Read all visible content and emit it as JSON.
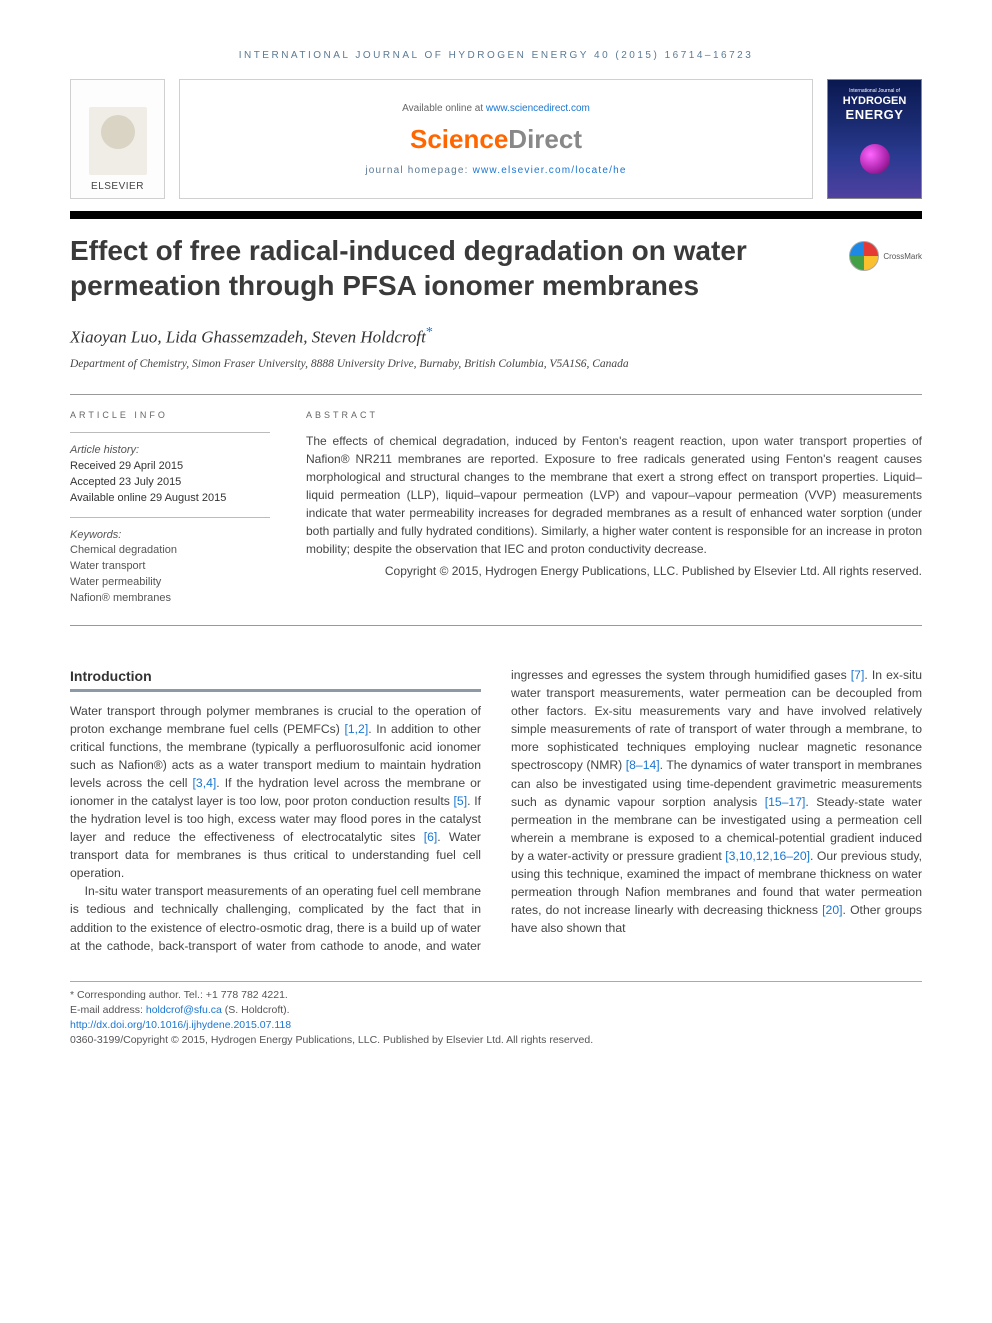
{
  "running_header": "INTERNATIONAL JOURNAL OF HYDROGEN ENERGY 40 (2015) 16714–16723",
  "header": {
    "elsevier_label": "ELSEVIER",
    "available_prefix": "Available online at ",
    "available_url": "www.sciencedirect.com",
    "sd_logo_1": "Science",
    "sd_logo_2": "Direct",
    "homepage_prefix": "journal homepage: ",
    "homepage_url": "www.elsevier.com/locate/he",
    "cover_line1": "International Journal of",
    "cover_line2": "HYDROGEN",
    "cover_line3": "ENERGY"
  },
  "crossmark_label": "CrossMark",
  "title": "Effect of free radical-induced degradation on water permeation through PFSA ionomer membranes",
  "authors": "Xiaoyan Luo, Lida Ghassemzadeh, Steven Holdcroft",
  "affiliation": "Department of Chemistry, Simon Fraser University, 8888 University Drive, Burnaby, British Columbia, V5A1S6, Canada",
  "info": {
    "head": "ARTICLE INFO",
    "history_label": "Article history:",
    "received": "Received 29 April 2015",
    "accepted": "Accepted 23 July 2015",
    "online": "Available online 29 August 2015",
    "keywords_label": "Keywords:",
    "kw1": "Chemical degradation",
    "kw2": "Water transport",
    "kw3": "Water permeability",
    "kw4": "Nafion® membranes"
  },
  "abstract": {
    "head": "ABSTRACT",
    "body": "The effects of chemical degradation, induced by Fenton's reagent reaction, upon water transport properties of Nafion® NR211 membranes are reported. Exposure to free radicals generated using Fenton's reagent causes morphological and structural changes to the membrane that exert a strong effect on transport properties. Liquid–liquid permeation (LLP), liquid–vapour permeation (LVP) and vapour–vapour permeation (VVP) measurements indicate that water permeability increases for degraded membranes as a result of enhanced water sorption (under both partially and fully hydrated conditions). Similarly, a higher water content is responsible for an increase in proton mobility; despite the observation that IEC and proton conductivity decrease.",
    "copyright": "Copyright © 2015, Hydrogen Energy Publications, LLC. Published by Elsevier Ltd. All rights reserved."
  },
  "section": {
    "head": "Introduction",
    "p1a": "Water transport through polymer membranes is crucial to the operation of proton exchange membrane fuel cells (PEMFCs) ",
    "r1": "[1,2]",
    "p1b": ". In addition to other critical functions, the membrane (typically a perfluorosulfonic acid ionomer such as Nafion®) acts as a water transport medium to maintain hydration levels across the cell ",
    "r2": "[3,4]",
    "p1c": ". If the hydration level across the membrane or ionomer in the catalyst layer is too low, poor proton conduction results ",
    "r3": "[5]",
    "p1d": ". If the hydration level is too high, excess water may flood pores in the catalyst layer and reduce the effectiveness of electrocatalytic sites ",
    "r4": "[6]",
    "p1e": ". Water transport data for membranes is thus critical to understanding fuel cell operation.",
    "p2a": "In-situ water transport measurements of an operating fuel cell membrane is tedious and technically challenging, complicated by the fact that in addition to the existence of electro-osmotic drag, there is a build up of water at the ",
    "p2b": "cathode, back-transport of water from cathode to anode, and water ingresses and egresses the system through humidified gases ",
    "r5": "[7]",
    "p2c": ". In ex-situ water transport measurements, water permeation can be decoupled from other factors. Ex-situ measurements vary and have involved relatively simple measurements of rate of transport of water through a membrane, to more sophisticated techniques employing nuclear magnetic resonance spectroscopy (NMR) ",
    "r6": "[8–14]",
    "p2d": ". The dynamics of water transport in membranes can also be investigated using time-dependent gravimetric measurements such as dynamic vapour sorption analysis ",
    "r7": "[15–17]",
    "p2e": ". Steady-state water permeation in the membrane can be investigated using a permeation cell wherein a membrane is exposed to a chemical-potential gradient induced by a water-activity or pressure gradient ",
    "r8": "[3,10,12,16–20]",
    "p2f": ". Our previous study, using this technique, examined the impact of membrane thickness on water permeation through Nafion membranes and found that water permeation rates, do not increase linearly with decreasing thickness ",
    "r9": "[20]",
    "p2g": ". Other groups have also shown that"
  },
  "footer": {
    "corr_label": "* Corresponding author.",
    "corr_tel": " Tel.: +1 778 782 4221.",
    "email_label": "E-mail address: ",
    "email": "holdcrof@sfu.ca",
    "email_suffix": " (S. Holdcroft).",
    "doi": "http://dx.doi.org/10.1016/j.ijhydene.2015.07.118",
    "issn_line": "0360-3199/Copyright © 2015, Hydrogen Energy Publications, LLC. Published by Elsevier Ltd. All rights reserved."
  }
}
